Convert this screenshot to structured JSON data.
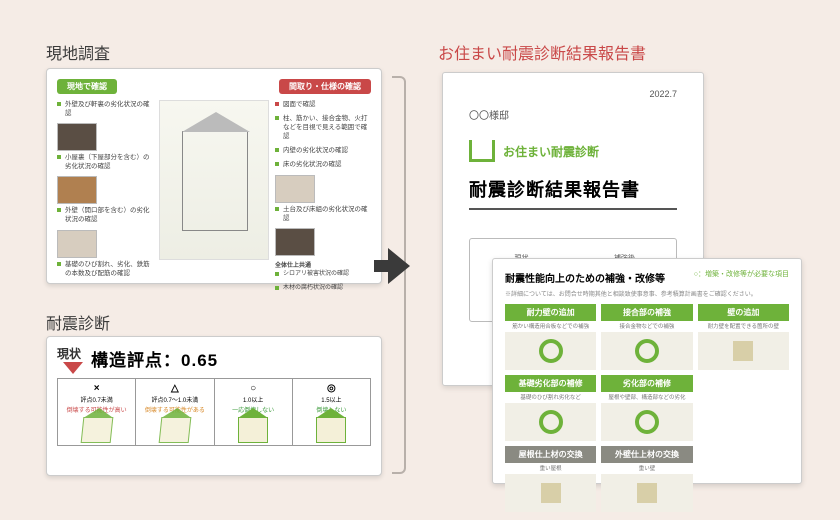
{
  "titles": {
    "survey": "現地調査",
    "diagnosis": "耐震診断",
    "report": "お住まい耐震診断結果報告書"
  },
  "survey": {
    "head_left": "現地で確認",
    "head_right": "間取り・仕様の確認",
    "left_items": [
      "外壁及び軒裏の劣化状況の確認",
      "小屋裏（下屋部分を含む）の劣化状況の確認",
      "外壁（開口部を含む）の劣化状況の確認",
      "基礎のひび割れ、劣化、鉄筋の本数及び配筋の確認"
    ],
    "right_head_item": "図面で確認",
    "right_items": [
      "柱、筋かい、接合金物、火打などを目視で見える範囲で確認",
      "内壁の劣化状況の確認",
      "床の劣化状況の確認",
      "土台及び床組の劣化状況の確認"
    ],
    "bottom_items": [
      "全体仕上共通",
      "シロアリ被害状況の確認",
      "木材の腐朽状況の確認"
    ]
  },
  "diag": {
    "now": "現状",
    "score_label": "構造評点：",
    "score_value": "0.65",
    "cells": [
      {
        "mark": "×",
        "range": "評点0.7未満",
        "risk": "倒壊する可能性が高い",
        "cls": "risk-red",
        "sad": true
      },
      {
        "mark": "△",
        "range": "評点0.7～1.0未満",
        "risk": "倒壊する可能性がある",
        "cls": "risk-orange",
        "sad": true
      },
      {
        "mark": "○",
        "range": "1.0以上",
        "risk": "一応倒壊しない",
        "cls": "risk-green",
        "sad": false
      },
      {
        "mark": "◎",
        "range": "1.5以上",
        "risk": "倒壊しない",
        "cls": "risk-green",
        "sad": false
      }
    ]
  },
  "report": {
    "date": "2022.7",
    "addressee": "〇〇様邸",
    "logo_text": "お住まい耐震診断",
    "title": "耐震診断結果報告書",
    "mini_left": "現状",
    "mini_right": "補強後",
    "marks_l": "×",
    "marks_r": "○"
  },
  "improve": {
    "title": "耐震性能向上のための補強・改修等",
    "title_r": "○：増築・改修等が必要な項目",
    "sub": "※詳細については、お問合せ時期其他と相談致使事意事、参考積算計画書をご確認ください。",
    "cards": [
      {
        "h": "耐力壁の追加",
        "s": "筋かい構造用合板などでの補強",
        "green": true,
        "ring": true
      },
      {
        "h": "接合部の補強",
        "s": "接合金物などでの補強",
        "green": true,
        "ring": true
      },
      {
        "h": "壁の追加",
        "s": "耐力壁を配置できる箇所の壁",
        "green": true,
        "ring": false
      },
      {
        "h": "基礎劣化部の補修",
        "s": "基礎のひび割れ劣化など",
        "green": true,
        "ring": true
      },
      {
        "h": "劣化部の補修",
        "s": "屋根や壁部、構造部などの劣化",
        "green": true,
        "ring": true
      },
      {
        "h": "",
        "s": "",
        "green": false,
        "ring": false,
        "empty": true
      },
      {
        "h": "屋根仕上材の交換",
        "s": "重い屋根",
        "green": false,
        "ring": false
      },
      {
        "h": "外壁仕上材の交換",
        "s": "重い壁",
        "green": false,
        "ring": false
      }
    ]
  }
}
